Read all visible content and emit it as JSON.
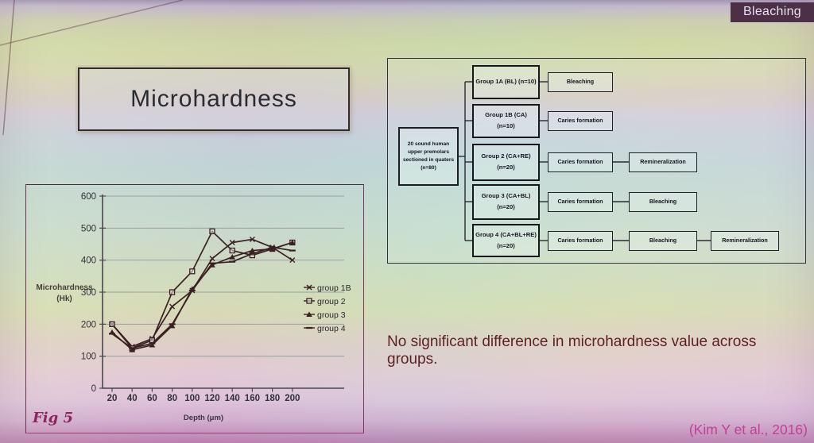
{
  "slide": {
    "corner_tag": "Bleaching",
    "title": "Microhardness",
    "finding": "No significant difference in microhardness value across groups.",
    "figure_label": "Fig 5",
    "citation": "(Kim Y et al., 2016)"
  },
  "chart_data": {
    "type": "line",
    "title": "",
    "xlabel": "Depth (μm)",
    "ylabel": "Microhardness (Hk)",
    "ylabel_lines": [
      "Microhardness",
      "(Hk)"
    ],
    "x": [
      20,
      40,
      60,
      80,
      100,
      120,
      140,
      160,
      180,
      200
    ],
    "ylim": [
      0,
      600
    ],
    "yticks": [
      0,
      100,
      200,
      300,
      400,
      500,
      600
    ],
    "grid": true,
    "legend_position": "right",
    "line_color": "#3b2023",
    "series": [
      {
        "name": "group 1B",
        "marker": "x",
        "values": [
          200,
          130,
          155,
          255,
          305,
          405,
          455,
          465,
          440,
          400
        ]
      },
      {
        "name": "group 2",
        "marker": "square",
        "values": [
          200,
          125,
          150,
          300,
          365,
          490,
          430,
          415,
          435,
          455
        ]
      },
      {
        "name": "group 3",
        "marker": "triangle",
        "values": [
          175,
          120,
          135,
          195,
          310,
          385,
          410,
          430,
          435,
          455
        ]
      },
      {
        "name": "group 4",
        "marker": "dash",
        "values": [
          170,
          125,
          140,
          200,
          305,
          390,
          395,
          420,
          440,
          430
        ]
      }
    ]
  },
  "flowchart": {
    "root": {
      "lines": [
        "20 sound human",
        "upper premolars",
        "sectioned in quaters",
        "(n=80)"
      ]
    },
    "rows": [
      {
        "group": [
          "Group 1A (BL) (n=10)"
        ],
        "steps": [
          "Bleaching"
        ]
      },
      {
        "group": [
          "Group 1B (CA)",
          "(n=10)"
        ],
        "steps": [
          "Caries formation"
        ]
      },
      {
        "group": [
          "Group 2 (CA+RE)",
          "(n=20)"
        ],
        "steps": [
          "Caries formation",
          "Remineralization"
        ]
      },
      {
        "group": [
          "Group 3 (CA+BL)",
          "(n=20)"
        ],
        "steps": [
          "Caries formation",
          "Bleaching"
        ]
      },
      {
        "group": [
          "Group 4 (CA+BL+RE)",
          "(n=20)"
        ],
        "steps": [
          "Caries formation",
          "Bleaching",
          "Remineralization"
        ]
      }
    ]
  },
  "colors": {
    "badge_bg": "#4c3146",
    "badge_text": "#eae3ec",
    "finding": "#5e2126",
    "citation": "#c34097",
    "figure_label": "#8e2460"
  }
}
